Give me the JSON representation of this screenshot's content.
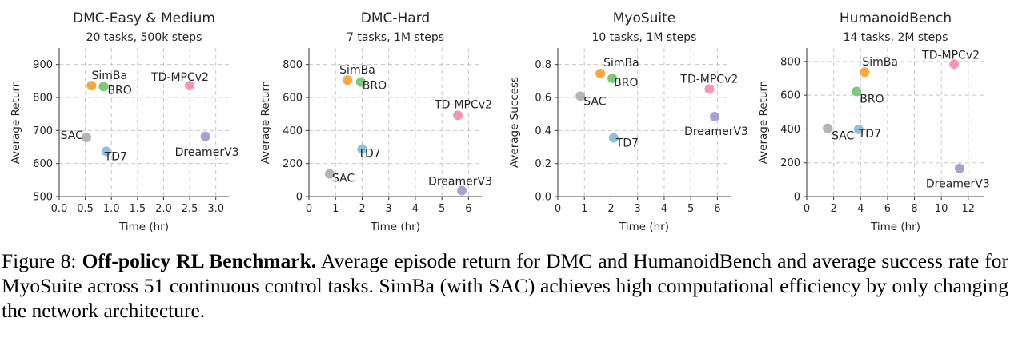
{
  "chart_data": [
    {
      "type": "scatter",
      "title": "DMC-Easy & Medium",
      "subtitle": "20 tasks, 500k steps",
      "xlabel": "Time (hr)",
      "ylabel": "Average Return",
      "xlim": [
        0,
        3.25
      ],
      "ylim": [
        500,
        950
      ],
      "xticks": [
        "0.0",
        "0.5",
        "1.0",
        "1.5",
        "2.0",
        "2.5",
        "3.0"
      ],
      "yticks": [
        "500",
        "600",
        "700",
        "800",
        "900"
      ],
      "grid": true,
      "points": [
        {
          "label": "SimBa",
          "x": 0.62,
          "y": 836,
          "color": "#f8a842"
        },
        {
          "label": "BRO",
          "x": 0.85,
          "y": 833,
          "color": "#7fc77a"
        },
        {
          "label": "TD-MPCv2",
          "x": 2.5,
          "y": 836,
          "color": "#f497b1"
        },
        {
          "label": "SAC",
          "x": 0.52,
          "y": 679,
          "color": "#b4b4b4"
        },
        {
          "label": "TD7",
          "x": 0.9,
          "y": 637,
          "color": "#8dc1de"
        },
        {
          "label": "DreamerV3",
          "x": 2.8,
          "y": 682,
          "color": "#a7a3d1"
        }
      ]
    },
    {
      "type": "scatter",
      "title": "DMC-Hard",
      "subtitle": "7 tasks, 1M steps",
      "xlabel": "Time (hr)",
      "ylabel": "Average Return",
      "xlim": [
        0,
        6.5
      ],
      "ylim": [
        0,
        900
      ],
      "xticks": [
        "0",
        "1",
        "2",
        "3",
        "4",
        "5",
        "6"
      ],
      "yticks": [
        "0",
        "200",
        "400",
        "600",
        "800"
      ],
      "grid": true,
      "points": [
        {
          "label": "SimBa",
          "x": 1.45,
          "y": 706,
          "color": "#f8a842"
        },
        {
          "label": "BRO",
          "x": 1.95,
          "y": 694,
          "color": "#7fc77a"
        },
        {
          "label": "TD-MPCv2",
          "x": 5.6,
          "y": 492,
          "color": "#f497b1"
        },
        {
          "label": "TD7",
          "x": 2.0,
          "y": 287,
          "color": "#8dc1de"
        },
        {
          "label": "SAC",
          "x": 0.78,
          "y": 137,
          "color": "#b4b4b4"
        },
        {
          "label": "DreamerV3",
          "x": 5.75,
          "y": 36,
          "color": "#a7a3d1"
        }
      ]
    },
    {
      "type": "scatter",
      "title": "MyoSuite",
      "subtitle": "10 tasks, 1M steps",
      "xlabel": "Time (hr)",
      "ylabel": "Average Success",
      "xlim": [
        0,
        6.5
      ],
      "ylim": [
        0,
        0.9
      ],
      "xticks": [
        "0",
        "1",
        "2",
        "3",
        "4",
        "5",
        "6"
      ],
      "yticks": [
        "0.0",
        "0.2",
        "0.4",
        "0.6",
        "0.8"
      ],
      "grid": true,
      "points": [
        {
          "label": "SimBa",
          "x": 1.6,
          "y": 0.745,
          "color": "#f8a842"
        },
        {
          "label": "BRO",
          "x": 2.05,
          "y": 0.716,
          "color": "#7fc77a"
        },
        {
          "label": "TD-MPCv2",
          "x": 5.7,
          "y": 0.651,
          "color": "#f497b1"
        },
        {
          "label": "SAC",
          "x": 0.85,
          "y": 0.608,
          "color": "#b4b4b4"
        },
        {
          "label": "DreamerV3",
          "x": 5.9,
          "y": 0.484,
          "color": "#a7a3d1"
        },
        {
          "label": "TD7",
          "x": 2.1,
          "y": 0.355,
          "color": "#8dc1de"
        }
      ]
    },
    {
      "type": "scatter",
      "title": "HumanoidBench",
      "subtitle": "14 tasks, 2M steps",
      "xlabel": "Time (hr)",
      "ylabel": "Average Return",
      "xlim": [
        0,
        13.2
      ],
      "ylim": [
        0,
        880
      ],
      "xticks": [
        "0",
        "2",
        "4",
        "6",
        "8",
        "10",
        "12"
      ],
      "yticks": [
        "0",
        "200",
        "400",
        "600",
        "800"
      ],
      "grid": true,
      "points": [
        {
          "label": "TD-MPCv2",
          "x": 10.95,
          "y": 784,
          "color": "#f497b1"
        },
        {
          "label": "SimBa",
          "x": 4.3,
          "y": 737,
          "color": "#f8a842"
        },
        {
          "label": "BRO",
          "x": 3.7,
          "y": 622,
          "color": "#7fc77a"
        },
        {
          "label": "SAC",
          "x": 1.55,
          "y": 404,
          "color": "#b4b4b4"
        },
        {
          "label": "TD7",
          "x": 3.85,
          "y": 398,
          "color": "#8dc1de"
        },
        {
          "label": "DreamerV3",
          "x": 11.35,
          "y": 167,
          "color": "#a7a3d1"
        }
      ]
    }
  ],
  "caption": {
    "prefix": "Figure 8: ",
    "bold": "Off-policy RL Benchmark.",
    "text": " Average episode return for DMC and HumanoidBench and average success rate for MyoSuite across 51 continuous control tasks. SimBa (with SAC) achieves high computational efficiency by only changing the network architecture."
  }
}
